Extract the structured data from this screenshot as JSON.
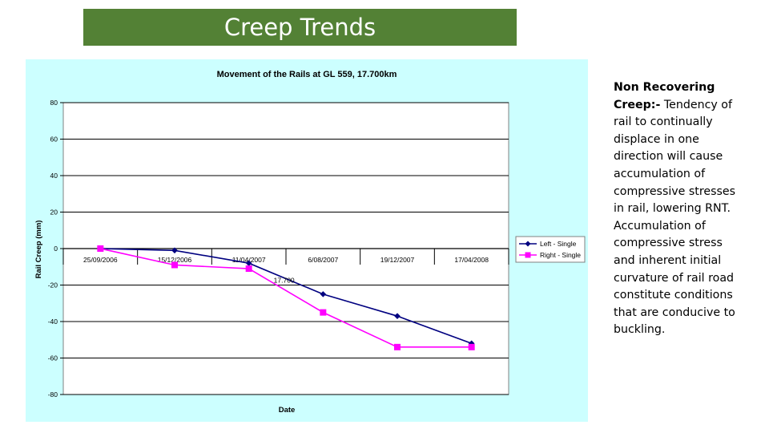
{
  "slide": {
    "title": "Creep Trends",
    "title_bg": "#538135",
    "paragraph_lead": "Non Recovering Creep:-",
    "paragraph_body": " Tendency of rail to continually displace in one direction will cause accumulation of compressive stresses in rail, lowering RNT. Accumulation of compressive stress and inherent initial curvature of rail road constitute conditions that are conducive to buckling."
  },
  "chart_data": {
    "type": "line",
    "title": "Movement of the Rails at GL 559, 17.700km",
    "xlabel": "Date",
    "ylabel": "Rail Creep (mm)",
    "categories": [
      "25/09/2006",
      "15/12/2006",
      "11/04/2007",
      "6/08/2007",
      "19/12/2007",
      "17/04/2008"
    ],
    "ylim": [
      -80,
      80
    ],
    "yticks": [
      80,
      60,
      40,
      20,
      0,
      -20,
      -40,
      -60,
      -80
    ],
    "series": [
      {
        "name": "Left - Single",
        "color": "#000080",
        "marker": "diamond",
        "values": [
          0,
          -1,
          -8,
          -25,
          -37,
          -52
        ]
      },
      {
        "name": "Right - Single",
        "color": "#ff00ff",
        "marker": "square",
        "values": [
          0,
          -9,
          -11,
          -35,
          -54,
          -54
        ]
      }
    ],
    "annotations": [
      {
        "text": "17.700"
      }
    ],
    "background": "#ccffff",
    "plot_background": "#ffffff",
    "grid": "horizontal",
    "legend_position": "right"
  }
}
